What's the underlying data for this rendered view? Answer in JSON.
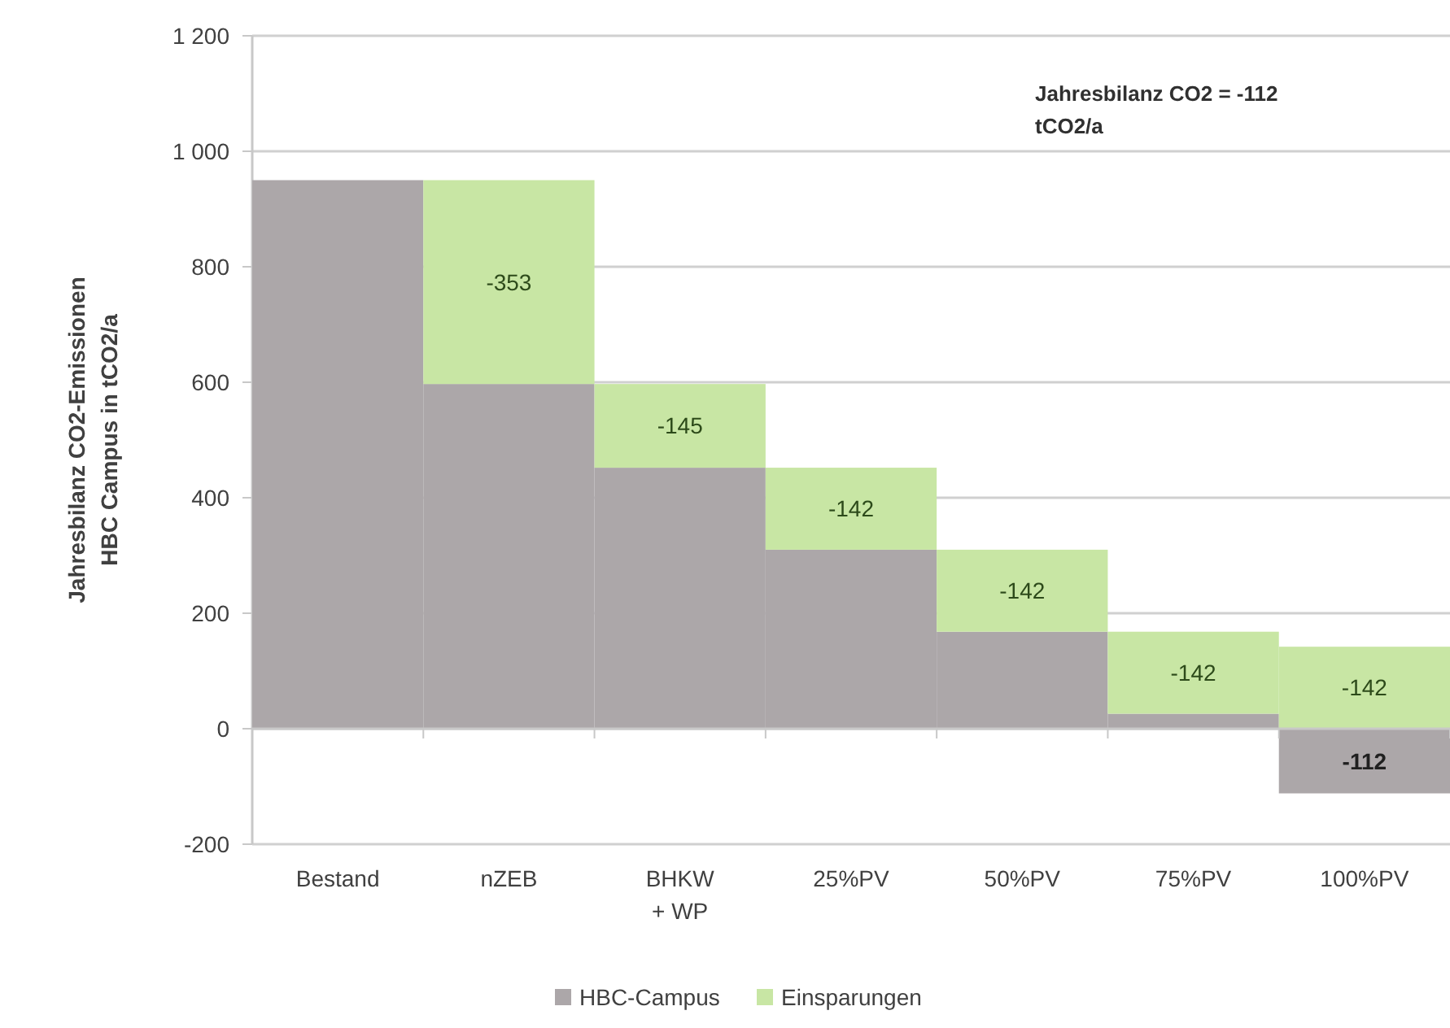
{
  "chart_data": {
    "type": "bar",
    "stacked": true,
    "ylabel": "Jahresbilanz CO2-Emissionen\nHBC Campus in tCO2/a",
    "categories": [
      "Bestand",
      "nZEB",
      "BHKW\n+ WP",
      "25%PV",
      "50%PV",
      "75%PV",
      "100%PV"
    ],
    "series": [
      {
        "name": "HBC-Campus",
        "color": "#aca7a9",
        "values": [
          950,
          597,
          452,
          310,
          168,
          26,
          -112
        ],
        "value_labels": [
          null,
          null,
          null,
          null,
          null,
          null,
          "-112"
        ]
      },
      {
        "name": "Einsparungen",
        "color": "#c8e6a4",
        "values": [
          null,
          353,
          145,
          142,
          142,
          142,
          142
        ]
      }
    ],
    "ylim": [
      -200,
      1200
    ],
    "yticks": [
      -200,
      0,
      200,
      400,
      600,
      800,
      1000,
      {
        "value": 1200,
        "label": "1 200"
      }
    ],
    "grid": "y",
    "legend": "bottom",
    "annotations": [
      "Jahresbilanz CO2 = -112\ntCO2/a",
      "-353",
      "-145",
      "-142",
      "-142",
      "-142",
      "-142"
    ]
  }
}
